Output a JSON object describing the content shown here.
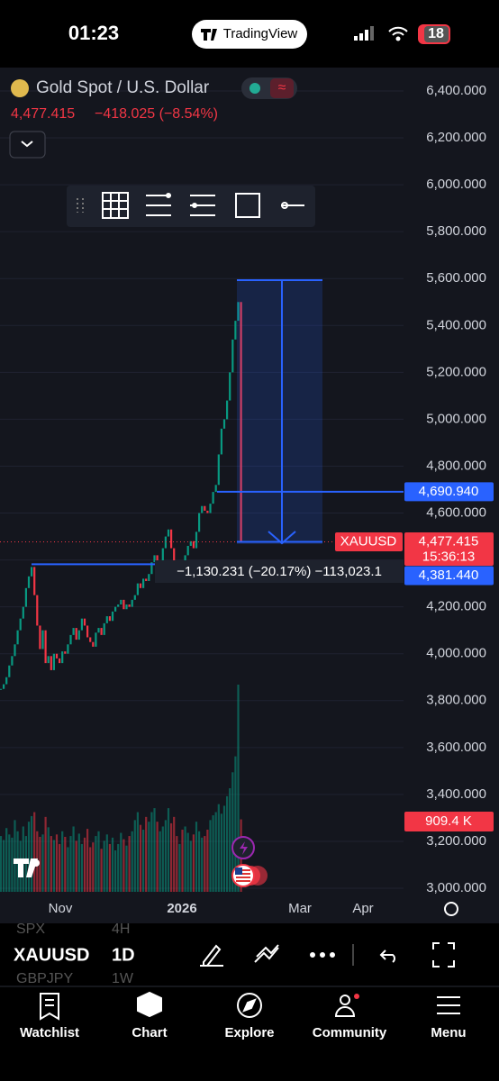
{
  "status_bar": {
    "time": "01:23",
    "app": "TradingView",
    "battery": "18"
  },
  "header": {
    "title": "Gold Spot / U.S. Dollar",
    "price": "4,477.415",
    "change": "−418.025 (−8.54%)"
  },
  "price_axis": {
    "ylim": [
      3000,
      6400
    ],
    "ticks": [
      {
        "value": 6400,
        "label": "6,400.000"
      },
      {
        "value": 6200,
        "label": "6,200.000"
      },
      {
        "value": 6000,
        "label": "6,000.000"
      },
      {
        "value": 5800,
        "label": "5,800.000"
      },
      {
        "value": 5600,
        "label": "5,600.000"
      },
      {
        "value": 5400,
        "label": "5,400.000"
      },
      {
        "value": 5200,
        "label": "5,200.000"
      },
      {
        "value": 5000,
        "label": "5,000.000"
      },
      {
        "value": 4800,
        "label": "4,800.000"
      },
      {
        "value": 4600,
        "label": "4,600.000"
      },
      {
        "value": 4400,
        "label": "4,400.000"
      },
      {
        "value": 4200,
        "label": "4,200.000"
      },
      {
        "value": 4000,
        "label": "4,000.000"
      },
      {
        "value": 3800,
        "label": "3,800.000"
      },
      {
        "value": 3600,
        "label": "3,600.000"
      },
      {
        "value": 3400,
        "label": "3,400.000"
      },
      {
        "value": 3200,
        "label": "3,200.000"
      },
      {
        "value": 3000,
        "label": "3,000.000"
      }
    ]
  },
  "time_axis": {
    "labels": [
      "Nov",
      "2026",
      "Mar",
      "Apr"
    ]
  },
  "chart": {
    "up_color": "#089981",
    "down_color": "#f23645",
    "closes": [
      3850,
      3870,
      3900,
      3950,
      3990,
      4040,
      4100,
      4150,
      4200,
      4280,
      4330,
      4370,
      4250,
      4120,
      4020,
      4100,
      3960,
      3990,
      3930,
      4000,
      3980,
      3960,
      4010,
      4000,
      4040,
      4080,
      4110,
      4060,
      4100,
      4150,
      4120,
      4070,
      4050,
      4030,
      4090,
      4110,
      4080,
      4130,
      4160,
      4140,
      4180,
      4200,
      4210,
      4230,
      4190,
      4210,
      4200,
      4230,
      4250,
      4300,
      4280,
      4320,
      4310,
      4340,
      4390,
      4420,
      4350,
      4380,
      4450,
      4500,
      4530,
      4450,
      4370,
      4330,
      4380,
      4320,
      4420,
      4460,
      4480,
      4450,
      4520,
      4600,
      4630,
      4610,
      4600,
      4640,
      4690,
      4720,
      4850,
      4960,
      5000,
      5080,
      5200,
      5340,
      5420,
      5500,
      4477.415
    ],
    "volumes": [
      700,
      650,
      800,
      720,
      680,
      900,
      760,
      640,
      820,
      700,
      880,
      950,
      1000,
      760,
      690,
      720,
      940,
      810,
      700,
      650,
      720,
      600,
      760,
      690,
      560,
      700,
      820,
      640,
      730,
      600,
      680,
      790,
      560,
      620,
      700,
      760,
      540,
      640,
      720,
      600,
      680,
      520,
      600,
      740,
      660,
      580,
      700,
      760,
      900,
      1000,
      840,
      780,
      940,
      880,
      1000,
      1050,
      880,
      760,
      820,
      900,
      1050,
      860,
      940,
      700,
      600,
      780,
      820,
      740,
      640,
      720,
      880,
      760,
      680,
      700,
      780,
      900,
      960,
      1000,
      1100,
      980,
      1080,
      1200,
      1300,
      1500,
      1700,
      2600,
      909.4
    ]
  },
  "price_tags": [
    {
      "value": 4690.94,
      "label": "4,690.940",
      "color": "#2962ff"
    },
    {
      "value": 4477.415,
      "label": "4,477.415",
      "sub": "15:36:13",
      "symbol": "XAUUSD",
      "color": "#f23645"
    },
    {
      "value": 4381.44,
      "label": "4,381.440",
      "color": "#2962ff"
    }
  ],
  "volume_tag": "909.4 K",
  "measure_label": "−1,130.231 (−20.17%) −113,023.1",
  "symbol_bar": {
    "symbol": "XAUUSD",
    "interval": "1D",
    "ghost_symbols": [
      "SPX",
      "GBPJPY"
    ],
    "ghost_intervals": [
      "4H",
      "1W"
    ]
  },
  "tab_bar": [
    "Watchlist",
    "Chart",
    "Explore",
    "Community",
    "Menu"
  ]
}
